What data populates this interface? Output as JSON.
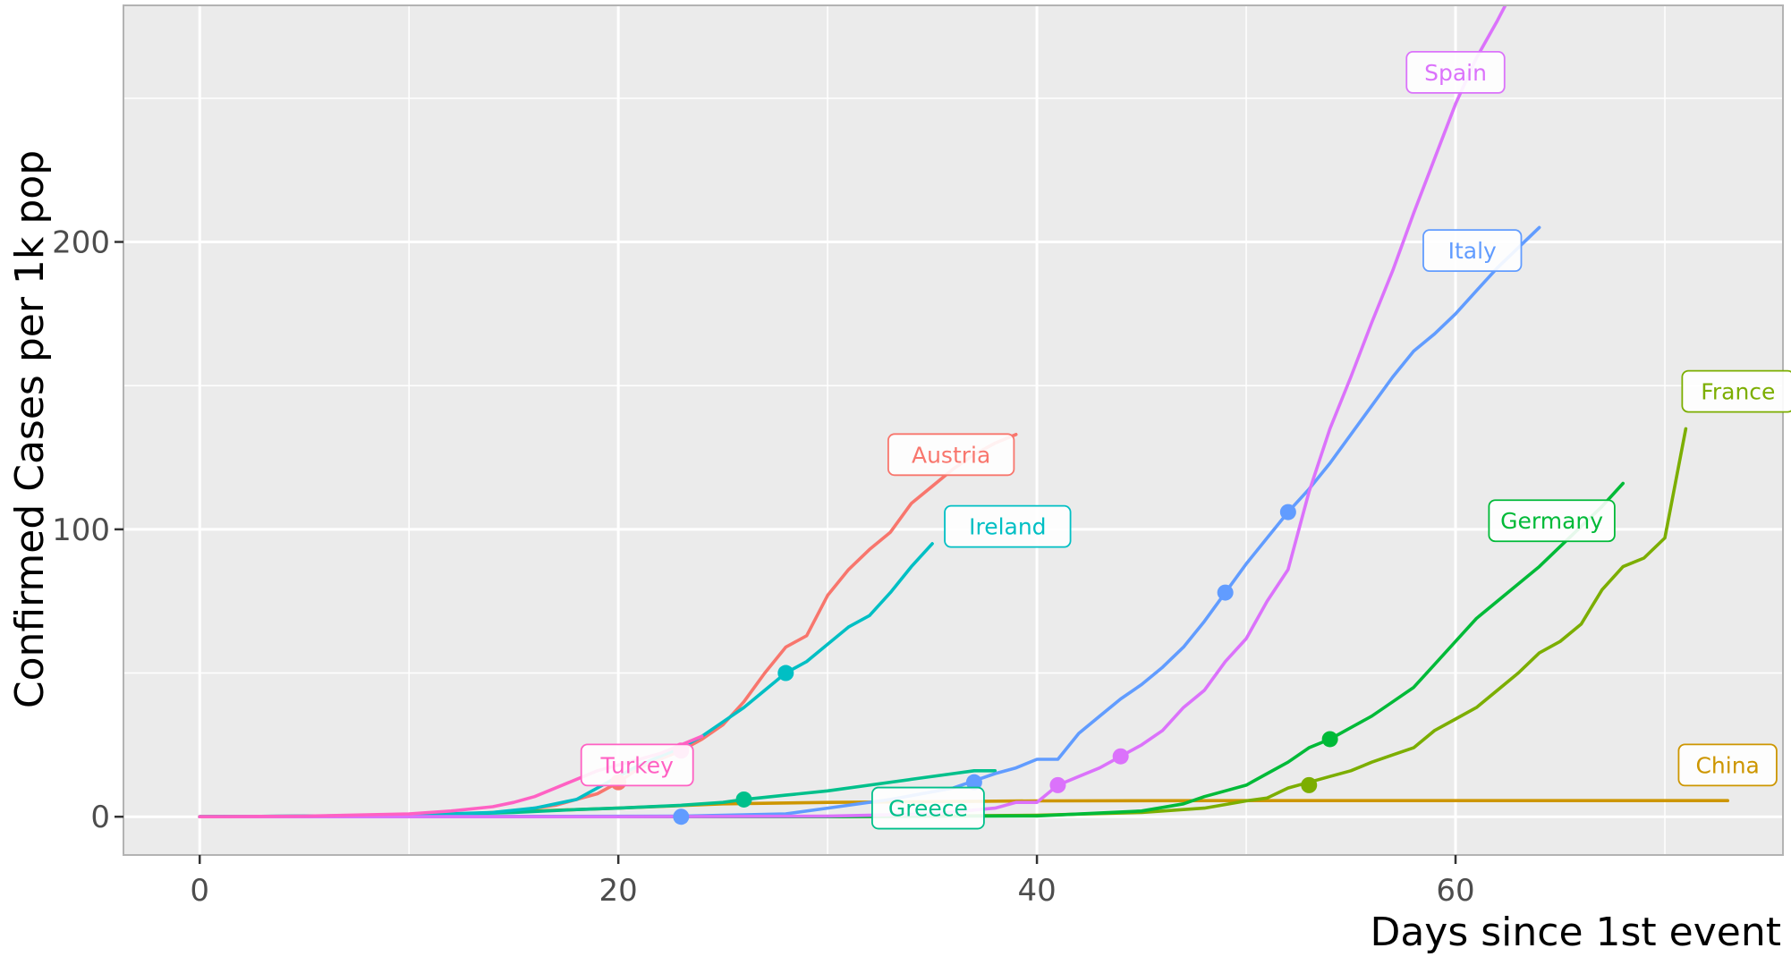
{
  "chart_data": {
    "type": "line",
    "title": "",
    "xlabel": "Days since 1st event",
    "ylabel": "Confirmed Cases per 1k pop",
    "xlim": [
      -3.6,
      75.6
    ],
    "ylim": [
      -13,
      282
    ],
    "x_ticks": [
      0,
      20,
      40,
      60
    ],
    "x_tick_labels": [
      "0",
      "20",
      "40",
      "60"
    ],
    "y_ticks": [
      0,
      100,
      200
    ],
    "y_tick_labels": [
      "0",
      "100",
      "200"
    ],
    "grid": true,
    "legend": "none (direct labels)",
    "background": "#ebebeb",
    "series": [
      {
        "name": "Austria",
        "color": "#f8766d",
        "x": [
          0,
          5,
          10,
          13,
          15,
          17,
          19,
          20,
          21,
          22,
          23,
          24,
          25,
          26,
          27,
          28,
          29,
          30,
          31,
          32,
          33,
          34,
          35,
          36,
          37,
          38,
          39
        ],
        "y": [
          0,
          0,
          0.5,
          1,
          2,
          4,
          8,
          12,
          17,
          20,
          23,
          27,
          32,
          40,
          50,
          59,
          63,
          77,
          86,
          93,
          99,
          109,
          115,
          121,
          126,
          130,
          133
        ],
        "marker": {
          "x": 20,
          "y": 12
        },
        "label_pos": {
          "x": 35.9,
          "y": 126
        }
      },
      {
        "name": "China",
        "color": "#cd9600",
        "x": [
          0,
          10,
          16,
          20,
          25,
          30,
          40,
          50,
          60,
          70,
          73
        ],
        "y": [
          0,
          0.3,
          2,
          3,
          4.5,
          5,
          5.5,
          5.6,
          5.6,
          5.6,
          5.6
        ],
        "marker": null,
        "label_pos": {
          "x": 73,
          "y": 18
        }
      },
      {
        "name": "France",
        "color": "#7cae00",
        "x": [
          0,
          30,
          40,
          45,
          48,
          50,
          51,
          52,
          53,
          54,
          55,
          56,
          57,
          58,
          59,
          60,
          61,
          62,
          63,
          64,
          65,
          66,
          67,
          68,
          69,
          70,
          71
        ],
        "y": [
          0,
          0,
          0.5,
          1.5,
          3,
          5.5,
          6.5,
          10,
          12,
          14,
          16,
          19,
          21.5,
          24,
          30,
          34,
          38,
          44,
          50,
          57,
          61,
          67,
          79,
          87,
          90,
          97,
          135
        ],
        "marker": {
          "x": 53,
          "y": 11
        },
        "label_pos": {
          "x": 73.5,
          "y": 148
        }
      },
      {
        "name": "Germany",
        "color": "#00ba38",
        "x": [
          0,
          30,
          40,
          45,
          47,
          48,
          49,
          50,
          51,
          52,
          53,
          54,
          55,
          56,
          57,
          58,
          59,
          60,
          61,
          62,
          63,
          64,
          65,
          66,
          67,
          68
        ],
        "y": [
          0,
          0,
          0.3,
          2,
          4.5,
          7,
          9,
          11,
          15,
          19,
          24,
          27,
          31,
          35,
          40,
          45,
          53,
          61,
          69,
          75,
          81,
          87,
          94,
          101,
          108,
          116
        ],
        "marker": {
          "x": 54,
          "y": 27
        },
        "label_pos": {
          "x": 64.6,
          "y": 103
        }
      },
      {
        "name": "Greece",
        "color": "#00c08b",
        "x": [
          0,
          10,
          15,
          18,
          20,
          23,
          25,
          26,
          28,
          30,
          32,
          34,
          36,
          37,
          38
        ],
        "y": [
          0,
          0.5,
          1.5,
          2.5,
          3,
          4,
          5,
          6,
          7.5,
          9,
          11,
          13,
          15,
          16,
          16
        ],
        "marker": {
          "x": 26,
          "y": 6
        },
        "label_pos": {
          "x": 34.8,
          "y": 3
        }
      },
      {
        "name": "Ireland",
        "color": "#00bfc4",
        "x": [
          0,
          10,
          14,
          16,
          18,
          19,
          20,
          21,
          22,
          23,
          24,
          25,
          26,
          27,
          28,
          29,
          30,
          31,
          32,
          33,
          34,
          35
        ],
        "y": [
          0,
          0.5,
          1.5,
          3,
          6,
          10,
          14,
          18,
          21,
          24,
          28,
          33,
          38,
          44,
          50,
          54,
          60,
          66,
          70,
          78,
          87,
          95
        ],
        "marker": {
          "x": 28,
          "y": 50
        },
        "label_pos": {
          "x": 38.6,
          "y": 101
        }
      },
      {
        "name": "Italy",
        "color": "#619cff",
        "x": [
          0,
          23,
          28,
          30,
          33,
          36,
          37,
          38,
          39,
          40,
          41,
          42,
          43,
          44,
          45,
          46,
          47,
          48,
          49,
          50,
          51,
          52,
          53,
          54,
          55,
          56,
          57,
          58,
          59,
          60,
          61,
          62,
          63,
          64
        ],
        "y": [
          0,
          0.2,
          1,
          3,
          6,
          10,
          12.5,
          15,
          17,
          20,
          20,
          29,
          35,
          41,
          46,
          52,
          59,
          68,
          78,
          88,
          97,
          106,
          114,
          123,
          133,
          143,
          153,
          162,
          168,
          175,
          183,
          191,
          198,
          205
        ],
        "marker": {
          "x": 23,
          "y": 0
        },
        "extra_markers": [
          {
            "x": 37,
            "y": 12
          },
          {
            "x": 49,
            "y": 78
          },
          {
            "x": 52,
            "y": 106
          }
        ],
        "label_pos": {
          "x": 60.8,
          "y": 197
        }
      },
      {
        "name": "Spain",
        "color": "#db72fb",
        "x": [
          0,
          20,
          30,
          35,
          38,
          39,
          40,
          41,
          42,
          43,
          44,
          45,
          46,
          47,
          48,
          49,
          50,
          51,
          52,
          53,
          54,
          55,
          56,
          57,
          58,
          59,
          60,
          61,
          62,
          63
        ],
        "y": [
          0,
          0,
          0.2,
          1,
          3,
          5,
          5,
          11,
          14,
          17,
          21,
          25,
          30,
          38,
          44,
          54,
          62,
          75,
          86,
          113,
          135,
          153,
          172,
          190,
          210,
          229,
          248,
          264,
          277,
          291
        ],
        "marker": {
          "x": 41,
          "y": 11
        },
        "extra_markers": [
          {
            "x": 44,
            "y": 21
          }
        ],
        "label_pos": {
          "x": 60,
          "y": 259
        }
      },
      {
        "name": "Turkey",
        "color": "#ff61c3",
        "x": [
          0,
          5,
          10,
          12,
          14,
          15,
          16,
          17,
          18,
          19,
          20,
          21,
          22,
          23,
          24
        ],
        "y": [
          0,
          0.2,
          1,
          2,
          3.5,
          5,
          7,
          10,
          13,
          16,
          18,
          20,
          22,
          25,
          28
        ],
        "marker": {
          "x": 23,
          "y": 23
        },
        "label_pos": {
          "x": 20.9,
          "y": 18
        }
      }
    ]
  }
}
